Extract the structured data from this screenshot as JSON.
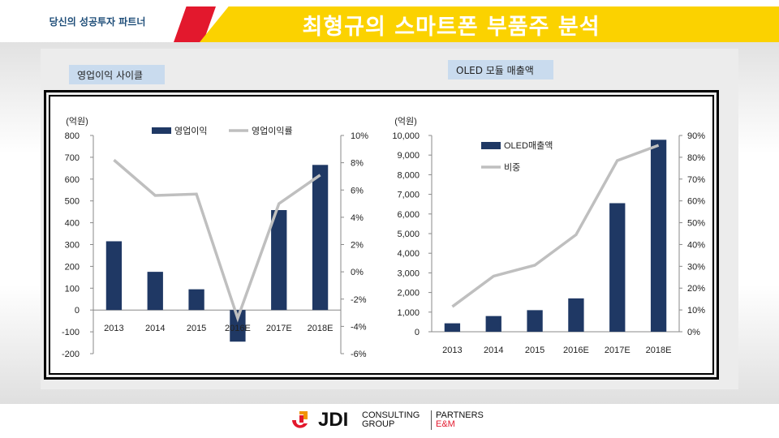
{
  "header": {
    "tagline": "당신의 성공투자 파트너",
    "title": "최형규의 스마트폰 부품주 분석"
  },
  "labels": {
    "left": "영업이익 사이클",
    "right": "OLED 모듈 매출액"
  },
  "colors": {
    "bar": "#1f3864",
    "line": "#bfbfbf",
    "accent_red": "#e3182d",
    "accent_yellow": "#fbd200",
    "title_blue": "#1f4e79"
  },
  "chart_data": [
    {
      "type": "bar",
      "unit_label": "(억원)",
      "categories": [
        "2013",
        "2014",
        "2015",
        "2016E",
        "2017E",
        "2018E"
      ],
      "series": [
        {
          "name": "영업이익",
          "type": "bar",
          "axis": "left",
          "values": [
            315,
            175,
            95,
            -145,
            458,
            665
          ]
        },
        {
          "name": "영업이익률",
          "type": "line",
          "axis": "right",
          "values": [
            8.2,
            5.6,
            5.7,
            -3.4,
            5.0,
            7.1
          ]
        }
      ],
      "y_left": {
        "min": -200,
        "max": 800,
        "ticks": [
          "800",
          "700",
          "600",
          "500",
          "400",
          "300",
          "200",
          "100",
          "0",
          "-100",
          "-200"
        ]
      },
      "y_right": {
        "min": -6,
        "max": 10,
        "ticks": [
          "10%",
          "8%",
          "6%",
          "4%",
          "2%",
          "0%",
          "-2%",
          "-4%",
          "-6%"
        ]
      },
      "legend": "top"
    },
    {
      "type": "bar",
      "unit_label": "(억원)",
      "categories": [
        "2013",
        "2014",
        "2015",
        "2016E",
        "2017E",
        "2018E"
      ],
      "series": [
        {
          "name": "OLED매출액",
          "type": "bar",
          "axis": "left",
          "values": [
            430,
            800,
            1100,
            1700,
            6550,
            9780
          ]
        },
        {
          "name": "비중",
          "type": "line",
          "axis": "right",
          "values": [
            11.5,
            25.5,
            30.5,
            44.5,
            78.5,
            85.5
          ]
        }
      ],
      "y_left": {
        "min": 0,
        "max": 10000,
        "ticks": [
          "10,000",
          "9,000",
          "8,000",
          "7,000",
          "6,000",
          "5,000",
          "4,000",
          "3,000",
          "2,000",
          "1,000",
          "0"
        ]
      },
      "y_right": {
        "min": 0,
        "max": 90,
        "ticks": [
          "90%",
          "80%",
          "70%",
          "60%",
          "50%",
          "40%",
          "30%",
          "20%",
          "10%",
          "0%"
        ]
      },
      "legend": "top-left"
    }
  ],
  "footer": {
    "brand": "JDI",
    "line1": "CONSULTING",
    "line2": "GROUP",
    "partners1": "PARTNERS",
    "partners2": "E&M"
  }
}
